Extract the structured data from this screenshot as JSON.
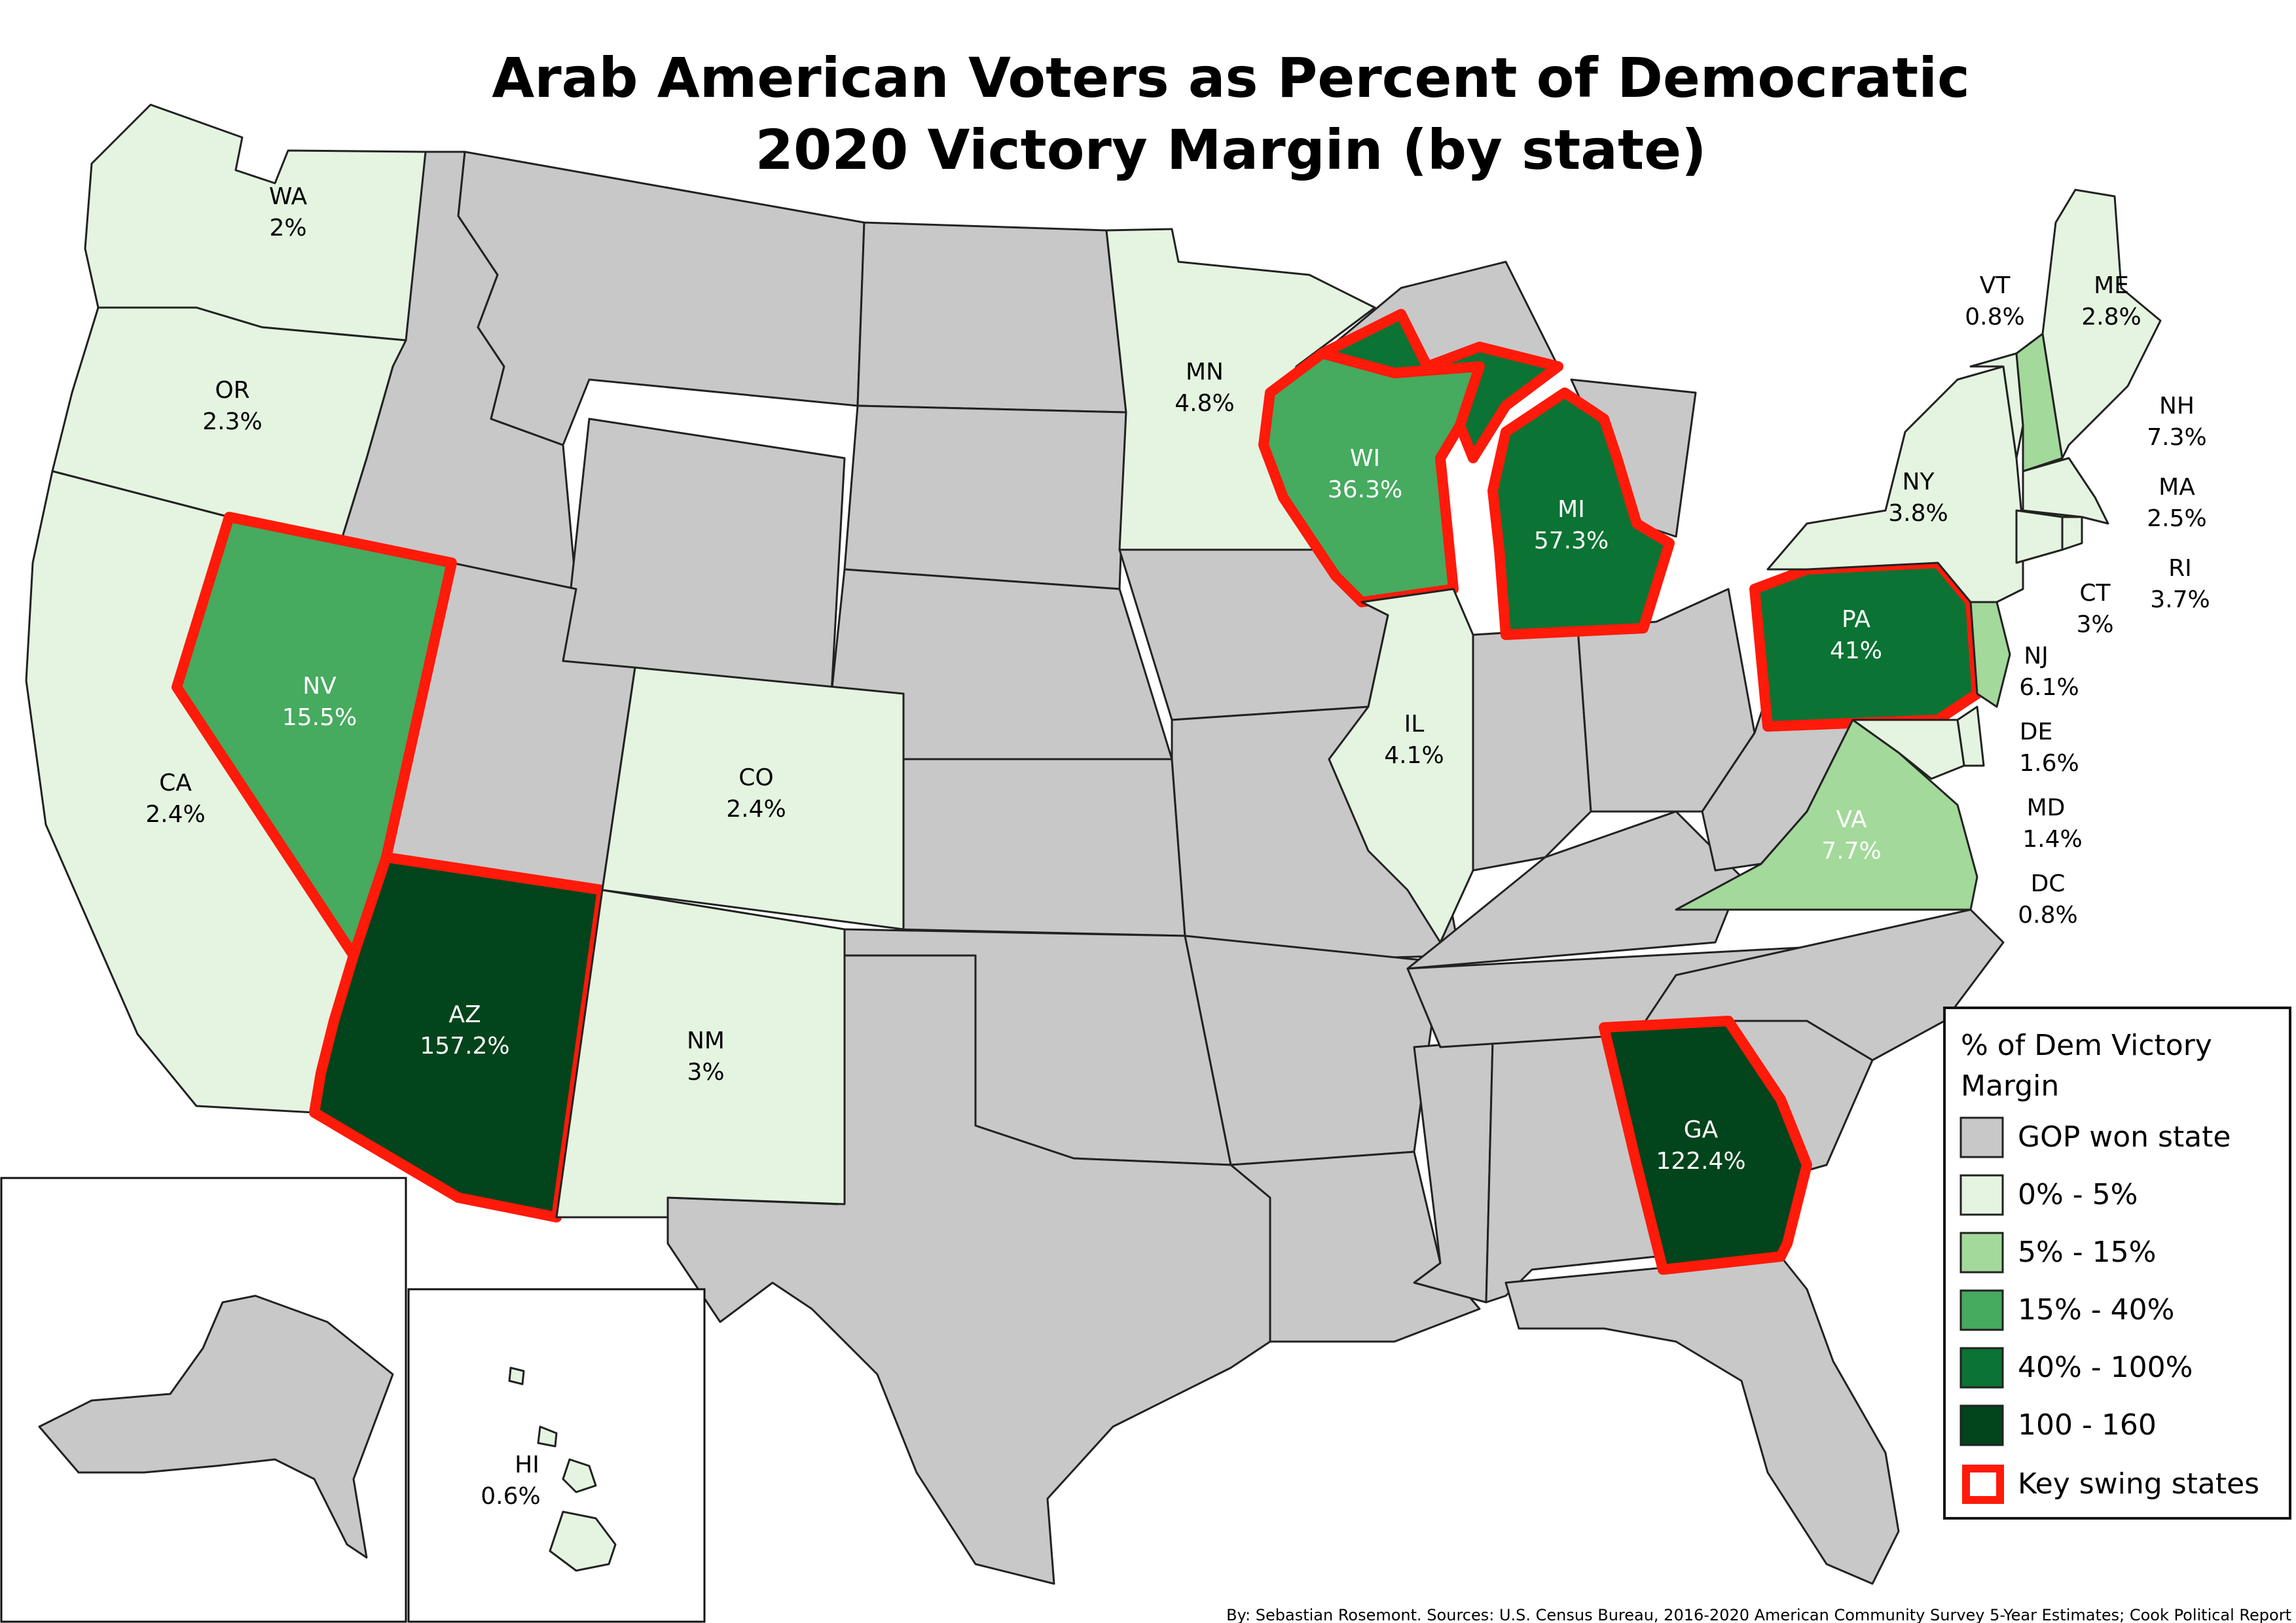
{
  "title": {
    "line1": "Arab American Voters as Percent of Democratic",
    "line2": "2020 Victory Margin (by state)"
  },
  "colors": {
    "gop": "#c8c8c8",
    "bin_0_5": "#e4f4e0",
    "bin_5_15": "#a3d99a",
    "bin_15_40": "#46aa5f",
    "bin_40_100": "#0b7333",
    "bin_100_160": "#02441b",
    "swing_outline": "#ff1a0a"
  },
  "states": {
    "WA": {
      "abbr": "WA",
      "value": "2%"
    },
    "OR": {
      "abbr": "OR",
      "value": "2.3%"
    },
    "CA": {
      "abbr": "CA",
      "value": "2.4%"
    },
    "NV": {
      "abbr": "NV",
      "value": "15.5%"
    },
    "AZ": {
      "abbr": "AZ",
      "value": "157.2%"
    },
    "CO": {
      "abbr": "CO",
      "value": "2.4%"
    },
    "NM": {
      "abbr": "NM",
      "value": "3%"
    },
    "MN": {
      "abbr": "MN",
      "value": "4.8%"
    },
    "WI": {
      "abbr": "WI",
      "value": "36.3%"
    },
    "MI": {
      "abbr": "MI",
      "value": "57.3%"
    },
    "IL": {
      "abbr": "IL",
      "value": "4.1%"
    },
    "GA": {
      "abbr": "GA",
      "value": "122.4%"
    },
    "PA": {
      "abbr": "PA",
      "value": "41%"
    },
    "VA": {
      "abbr": "VA",
      "value": "7.7%"
    },
    "NY": {
      "abbr": "NY",
      "value": "3.8%"
    },
    "VT": {
      "abbr": "VT",
      "value": "0.8%"
    },
    "ME": {
      "abbr": "ME",
      "value": "2.8%"
    },
    "NH": {
      "abbr": "NH",
      "value": "7.3%"
    },
    "MA": {
      "abbr": "MA",
      "value": "2.5%"
    },
    "RI": {
      "abbr": "RI",
      "value": "3.7%"
    },
    "CT": {
      "abbr": "CT",
      "value": "3%"
    },
    "NJ": {
      "abbr": "NJ",
      "value": "6.1%"
    },
    "DE": {
      "abbr": "DE",
      "value": "1.6%"
    },
    "MD": {
      "abbr": "MD",
      "value": "1.4%"
    },
    "DC": {
      "abbr": "DC",
      "value": "0.8%"
    },
    "HI": {
      "abbr": "HI",
      "value": "0.6%"
    }
  },
  "legend": {
    "title_line1": "% of Dem Victory",
    "title_line2": "Margin",
    "items": [
      {
        "label": "GOP won state"
      },
      {
        "label": "0% - 5%"
      },
      {
        "label": "5% - 15%"
      },
      {
        "label": "15% - 40%"
      },
      {
        "label": "40% - 100%"
      },
      {
        "label": "100 - 160"
      },
      {
        "label": "Key swing states"
      }
    ]
  },
  "footer": "By: Sebastian Rosemont. Sources: U.S. Census Bureau, 2016-2020 American Community Survey 5-Year Estimates; Cook Political Report"
}
